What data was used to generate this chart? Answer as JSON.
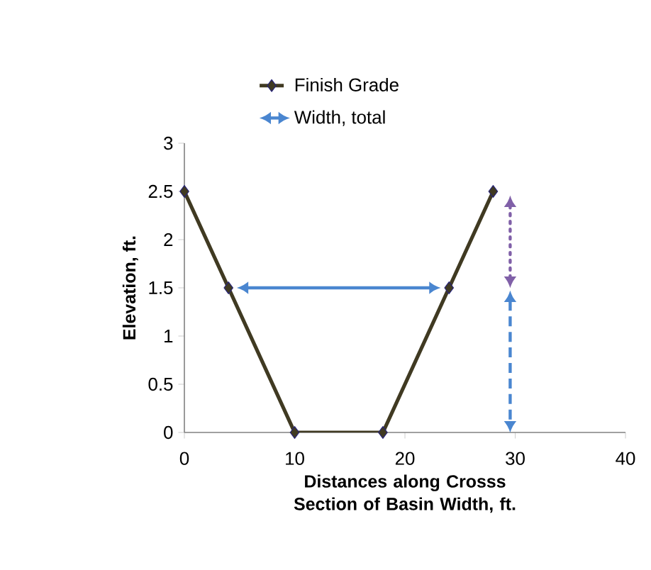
{
  "chart_data": {
    "type": "line",
    "xlabel": "Distances along Crosss Section of Basin Width, ft.",
    "ylabel": "Elevation, ft.",
    "xlim": [
      0,
      40
    ],
    "xticks": [
      0,
      10,
      20,
      30,
      40
    ],
    "ylim": [
      0,
      3
    ],
    "yticks": [
      0,
      0.5,
      1,
      1.5,
      2,
      2.5,
      3
    ],
    "grid": false,
    "legend": "top",
    "series": [
      {
        "name": "Finish Grade",
        "color": "#403a22",
        "x": [
          0,
          4,
          10,
          18,
          24,
          28
        ],
        "values": [
          2.5,
          1.5,
          0,
          0,
          1.5,
          2.5
        ],
        "marker": "diamond",
        "line_style": "solid"
      },
      {
        "name": "Width, total",
        "color": "#4a86d0",
        "marker": "none",
        "line_style": "solid"
      }
    ]
  }
}
